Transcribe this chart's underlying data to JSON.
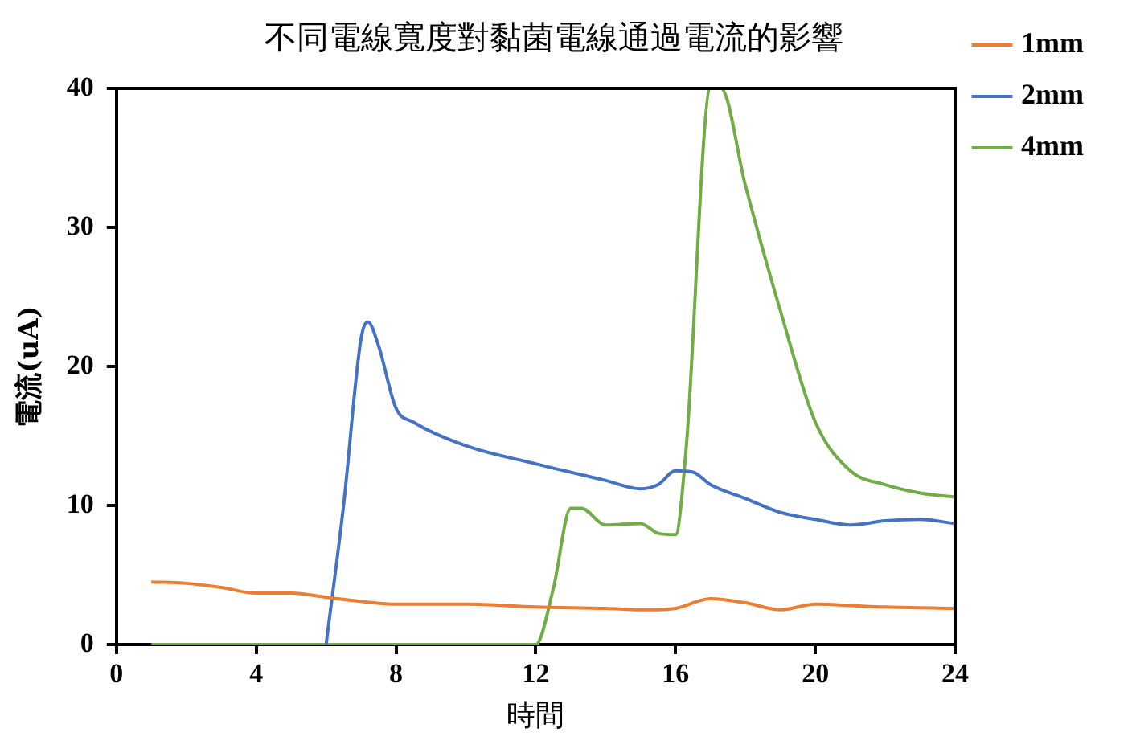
{
  "chart_data": {
    "type": "line",
    "title": "不同電線寬度對黏菌電線通過電流的影響",
    "xlabel": "時間",
    "ylabel": "電流(uA)",
    "xlim": [
      0,
      24
    ],
    "xticks": [
      0,
      4,
      8,
      12,
      16,
      20,
      24
    ],
    "ylim": [
      0,
      40
    ],
    "yticks": [
      0,
      10,
      20,
      30,
      40
    ],
    "grid": false,
    "legend": "top right",
    "marker": "none",
    "line_style": "solid",
    "series": [
      {
        "name": "1mm",
        "color": "#ed7d31",
        "x": [
          1,
          2,
          3,
          4,
          5,
          6,
          7,
          8,
          10,
          12,
          14,
          15,
          15.5,
          16,
          17,
          18,
          19,
          20,
          21,
          22,
          24
        ],
        "values": [
          4.5,
          4.4,
          4.1,
          3.7,
          3.7,
          3.4,
          3.1,
          2.9,
          2.9,
          2.7,
          2.6,
          2.5,
          2.5,
          2.6,
          3.3,
          3.0,
          2.5,
          2.9,
          2.8,
          2.7,
          2.6
        ]
      },
      {
        "name": "2mm",
        "color": "#4472c4",
        "x": [
          6,
          6.5,
          7,
          7.2,
          7.5,
          8,
          8.5,
          10,
          12,
          14,
          15,
          15.5,
          16,
          16.5,
          17,
          18,
          19,
          20,
          21,
          22,
          23,
          24
        ],
        "values": [
          0,
          10,
          22,
          23.2,
          21.5,
          17,
          16,
          14.3,
          13,
          11.8,
          11.2,
          11.5,
          12.5,
          12.4,
          11.5,
          10.5,
          9.5,
          9.0,
          8.6,
          8.9,
          9.0,
          8.7
        ]
      },
      {
        "name": "4mm",
        "color": "#70ad47",
        "x": [
          1,
          12,
          12.5,
          13,
          13.3,
          14,
          15,
          15.5,
          16,
          16.3,
          17,
          17.3,
          18,
          19,
          20,
          21,
          22,
          23,
          24
        ],
        "values": [
          0,
          0,
          4,
          9.8,
          9.8,
          8.6,
          8.7,
          8.0,
          7.9,
          14,
          40,
          40,
          33,
          24,
          16,
          12.5,
          11.5,
          10.9,
          10.6
        ]
      }
    ]
  }
}
